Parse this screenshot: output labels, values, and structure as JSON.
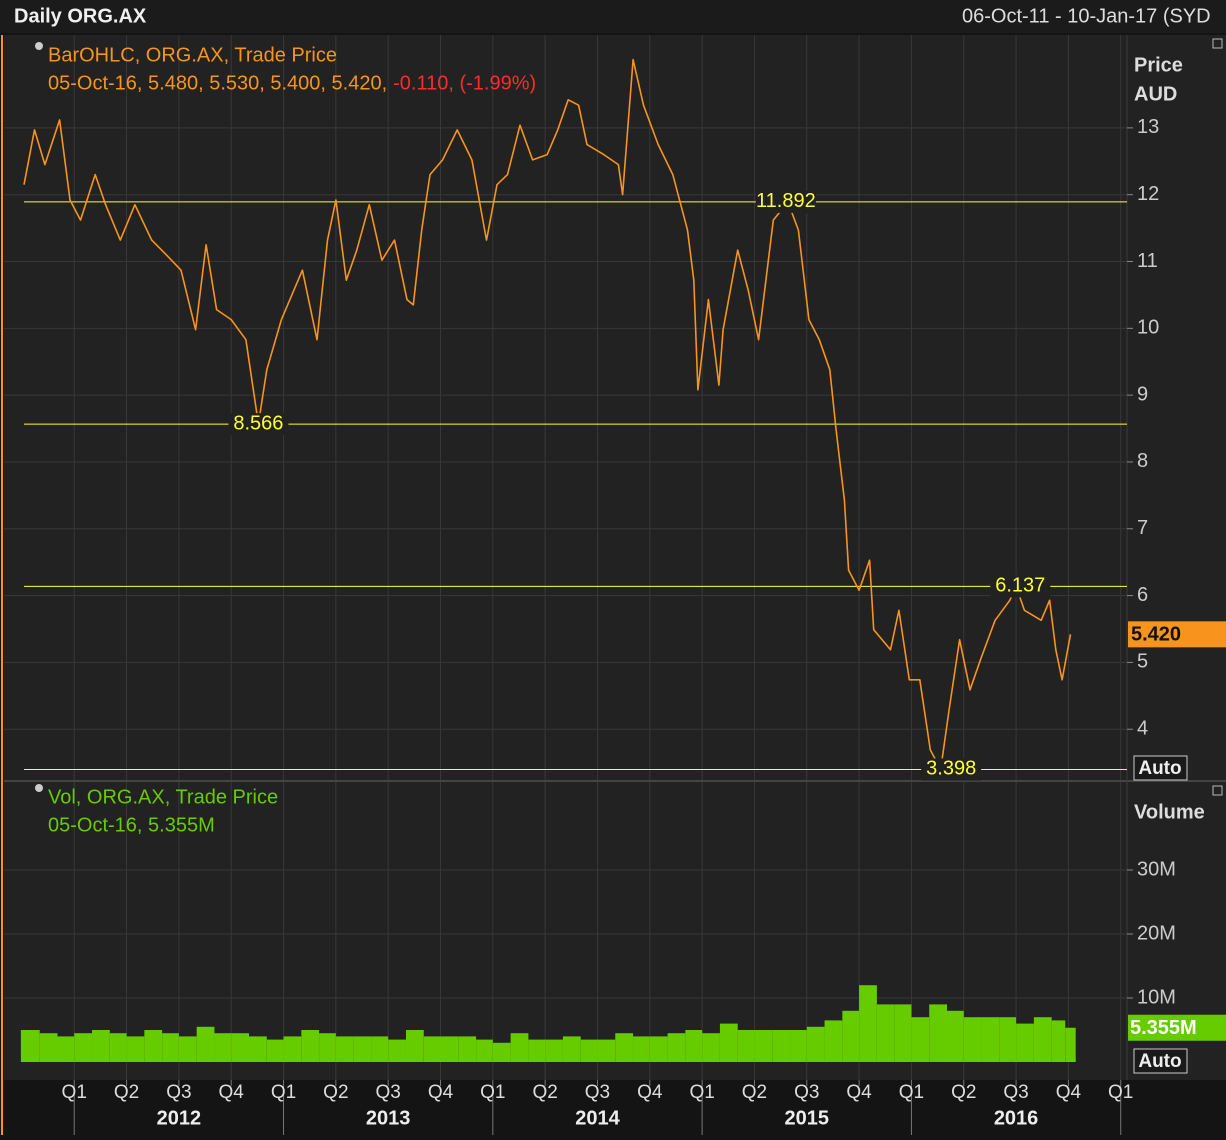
{
  "chart_data": [
    {
      "type": "line",
      "title": "Daily ORG.AX",
      "subtitle": "06-Oct-11 - 10-Jan-17 (SYD",
      "ylabel_lines": [
        "Price",
        "AUD"
      ],
      "legend_detail": "05-Oct-16, 5.480, 5.530, 5.400, 5.420,",
      "legend_change": "-0.110, (-1.99%)",
      "change_color": "#ff2a2a",
      "x": [
        2011.76,
        2011.81,
        2011.86,
        2011.93,
        2011.98,
        2012.03,
        2012.1,
        2012.15,
        2012.22,
        2012.29,
        2012.37,
        2012.44,
        2012.51,
        2012.58,
        2012.63,
        2012.68,
        2012.75,
        2012.82,
        2012.88,
        2012.92,
        2012.99,
        2013.09,
        2013.16,
        2013.21,
        2013.25,
        2013.3,
        2013.35,
        2013.41,
        2013.47,
        2013.53,
        2013.59,
        2013.62,
        2013.66,
        2013.7,
        2013.76,
        2013.83,
        2013.9,
        2013.97,
        2014.02,
        2014.07,
        2014.13,
        2014.19,
        2014.26,
        2014.31,
        2014.36,
        2014.41,
        2014.45,
        2014.53,
        2014.6,
        2014.62,
        2014.67,
        2014.72,
        2014.79,
        2014.86,
        2014.93,
        2014.96,
        2014.98,
        2015.03,
        2015.08,
        2015.1,
        2015.17,
        2015.22,
        2015.27,
        2015.34,
        2015.41,
        2015.46,
        2015.51,
        2015.56,
        2015.61,
        2015.64,
        2015.68,
        2015.7,
        2015.75,
        2015.8,
        2015.82,
        2015.9,
        2015.94,
        2015.99,
        2016.04,
        2016.09,
        2016.14,
        2016.18,
        2016.23,
        2016.28,
        2016.33,
        2016.4,
        2016.47,
        2016.5,
        2016.54,
        2016.62,
        2016.66,
        2016.69,
        2016.72,
        2016.76
      ],
      "series": [
        {
          "name": "BarOHLC, ORG.AX, Trade Price",
          "color": "#f7941d",
          "values": [
            12.15,
            12.97,
            12.45,
            13.12,
            11.92,
            11.62,
            12.3,
            11.85,
            11.32,
            11.85,
            11.32,
            11.1,
            10.87,
            9.98,
            11.25,
            10.28,
            10.13,
            9.83,
            8.57,
            9.38,
            10.13,
            10.87,
            9.83,
            11.32,
            11.92,
            10.72,
            11.17,
            11.85,
            11.02,
            11.32,
            10.43,
            10.35,
            11.47,
            12.3,
            12.52,
            12.97,
            12.52,
            11.32,
            12.15,
            12.3,
            13.04,
            12.52,
            12.6,
            12.97,
            13.42,
            13.34,
            12.75,
            12.6,
            12.45,
            12.0,
            14.02,
            13.34,
            12.75,
            12.3,
            11.47,
            10.72,
            9.08,
            10.43,
            9.15,
            9.98,
            11.17,
            10.57,
            9.83,
            11.62,
            11.89,
            11.47,
            10.13,
            9.83,
            9.38,
            8.48,
            7.43,
            6.38,
            6.08,
            6.53,
            5.49,
            5.19,
            5.78,
            4.74,
            4.74,
            3.69,
            3.4,
            4.29,
            5.34,
            4.59,
            5.04,
            5.63,
            5.93,
            6.14,
            5.78,
            5.63,
            5.93,
            5.19,
            4.74,
            5.42
          ]
        }
      ],
      "levels": [
        11.892,
        8.566,
        6.137,
        3.398
      ],
      "level_color": "#ffff33",
      "last_value": {
        "value": 5.42,
        "label": "5.420"
      },
      "xlim": [
        2011.76,
        2017.03
      ],
      "ylim": [
        3.24,
        14.39
      ],
      "yticks": [
        4,
        5,
        6,
        7,
        8,
        9,
        10,
        11,
        12,
        13
      ],
      "grid": true,
      "scale_button": "Auto"
    },
    {
      "type": "bar",
      "ylabel": "Volume",
      "legend_detail": "05-Oct-16, 5.355M",
      "x": [
        2011.79,
        2011.88,
        2011.96,
        2012.04,
        2012.13,
        2012.21,
        2012.29,
        2012.38,
        2012.46,
        2012.54,
        2012.63,
        2012.71,
        2012.79,
        2012.88,
        2012.96,
        2013.04,
        2013.13,
        2013.21,
        2013.29,
        2013.38,
        2013.46,
        2013.54,
        2013.63,
        2013.71,
        2013.79,
        2013.88,
        2013.96,
        2014.04,
        2014.13,
        2014.21,
        2014.29,
        2014.38,
        2014.46,
        2014.54,
        2014.63,
        2014.71,
        2014.79,
        2014.88,
        2014.96,
        2015.04,
        2015.13,
        2015.21,
        2015.29,
        2015.38,
        2015.46,
        2015.54,
        2015.63,
        2015.71,
        2015.79,
        2015.88,
        2015.96,
        2016.04,
        2016.13,
        2016.21,
        2016.29,
        2016.38,
        2016.46,
        2016.54,
        2016.63,
        2016.71,
        2016.76
      ],
      "series": [
        {
          "name": "Vol, ORG.AX, Trade Price",
          "color": "#66cc00",
          "values": [
            5000000,
            4500000,
            4000000,
            4500000,
            5000000,
            4500000,
            4000000,
            5000000,
            4500000,
            4000000,
            5500000,
            4500000,
            4500000,
            4000000,
            3500000,
            4000000,
            5000000,
            4500000,
            4000000,
            4000000,
            4000000,
            3500000,
            5000000,
            4000000,
            4000000,
            4000000,
            3500000,
            3000000,
            4500000,
            3500000,
            3500000,
            4000000,
            3500000,
            3500000,
            4500000,
            4000000,
            4000000,
            4500000,
            5000000,
            4500000,
            6000000,
            5000000,
            5000000,
            5000000,
            5000000,
            5500000,
            6500000,
            8000000,
            12000000,
            9000000,
            9000000,
            7000000,
            9000000,
            8000000,
            7000000,
            7000000,
            7000000,
            6000000,
            7000000,
            6500000,
            5355000
          ]
        }
      ],
      "last_value": {
        "value": 5355000,
        "label": "5.355M"
      },
      "xlim": [
        2011.76,
        2017.03
      ],
      "ylim": [
        0,
        43750000
      ],
      "yticks": [
        {
          "value": 10000000,
          "label": "10M"
        },
        {
          "value": 20000000,
          "label": "20M"
        },
        {
          "value": 30000000,
          "label": "30M"
        }
      ],
      "xticks": [
        {
          "value": 2012.0,
          "label": "Q1"
        },
        {
          "value": 2012.25,
          "label": "Q2"
        },
        {
          "value": 2012.5,
          "label": "Q3"
        },
        {
          "value": 2012.75,
          "label": "Q4"
        },
        {
          "value": 2013.0,
          "label": "Q1"
        },
        {
          "value": 2013.25,
          "label": "Q2"
        },
        {
          "value": 2013.5,
          "label": "Q3"
        },
        {
          "value": 2013.75,
          "label": "Q4"
        },
        {
          "value": 2014.0,
          "label": "Q1"
        },
        {
          "value": 2014.25,
          "label": "Q2"
        },
        {
          "value": 2014.5,
          "label": "Q3"
        },
        {
          "value": 2014.75,
          "label": "Q4"
        },
        {
          "value": 2015.0,
          "label": "Q1"
        },
        {
          "value": 2015.25,
          "label": "Q2"
        },
        {
          "value": 2015.5,
          "label": "Q3"
        },
        {
          "value": 2015.75,
          "label": "Q4"
        },
        {
          "value": 2016.0,
          "label": "Q1"
        },
        {
          "value": 2016.25,
          "label": "Q2"
        },
        {
          "value": 2016.5,
          "label": "Q3"
        },
        {
          "value": 2016.75,
          "label": "Q4"
        },
        {
          "value": 2017.0,
          "label": "Q1"
        }
      ],
      "year_labels": [
        {
          "value": 2012.5,
          "label": "2012"
        },
        {
          "value": 2013.5,
          "label": "2013"
        },
        {
          "value": 2014.5,
          "label": "2014"
        },
        {
          "value": 2015.5,
          "label": "2015"
        },
        {
          "value": 2016.5,
          "label": "2016"
        }
      ],
      "grid": true,
      "scale_button": "Auto"
    }
  ]
}
